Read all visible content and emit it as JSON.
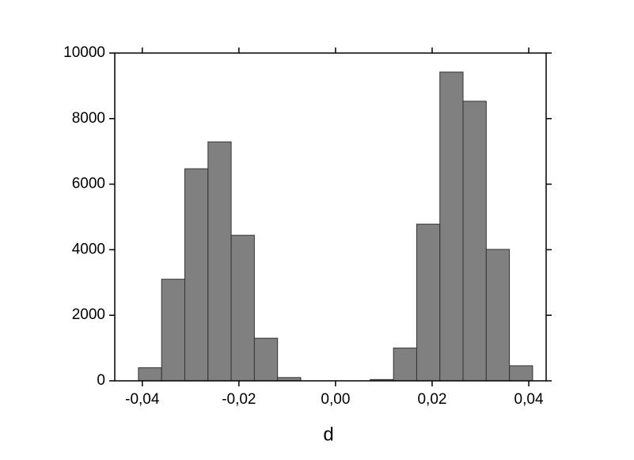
{
  "chart_data": {
    "type": "histogram",
    "x_label": "d",
    "bins": [
      -0.0408,
      -0.036,
      -0.0312,
      -0.0264,
      -0.0216,
      -0.0168,
      -0.012,
      -0.0072,
      -0.0024,
      0.0024,
      0.0072,
      0.012,
      0.0168,
      0.0216,
      0.0264,
      0.0312,
      0.036,
      0.0408
    ],
    "values": [
      400,
      3100,
      6470,
      7290,
      4440,
      1300,
      100,
      0,
      0,
      0,
      40,
      1000,
      4780,
      9420,
      8530,
      4010,
      460
    ],
    "color": "#808080",
    "xlim": [
      -0.0457,
      0.0436
    ],
    "xticks": [
      {
        "value": -0.04,
        "label": "-0,04"
      },
      {
        "value": -0.02,
        "label": "-0,02"
      },
      {
        "value": 0,
        "label": "0,00"
      },
      {
        "value": 0.02,
        "label": "0,02"
      },
      {
        "value": 0.04,
        "label": "0,04"
      }
    ],
    "ylim": [
      0,
      10000
    ],
    "yticks": [
      0,
      2000,
      4000,
      6000,
      8000,
      10000
    ],
    "grid": false
  }
}
